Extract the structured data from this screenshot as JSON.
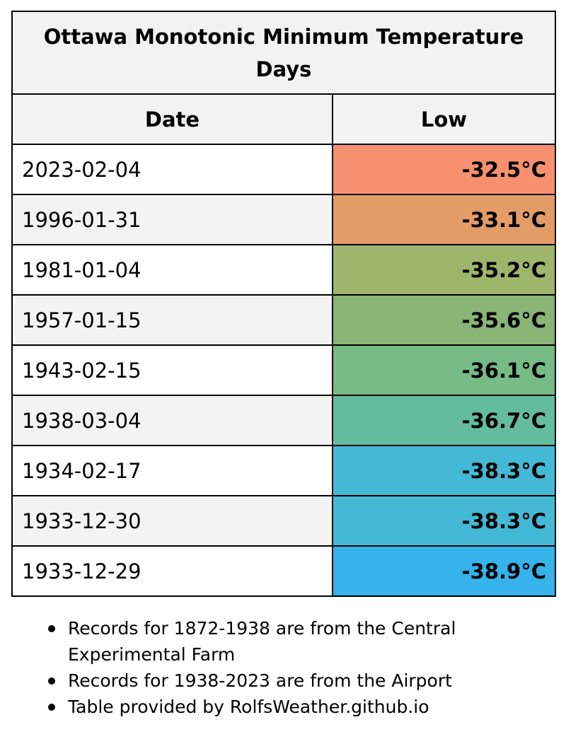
{
  "table": {
    "title": "Ottawa Monotonic Minimum Temperature Days",
    "headers": {
      "date": "Date",
      "low": "Low"
    },
    "rows": [
      {
        "date": "2023-02-04",
        "low": "-32.5°C",
        "color": "#f6906f"
      },
      {
        "date": "1996-01-31",
        "low": "-33.1°C",
        "color": "#e49c67"
      },
      {
        "date": "1981-01-04",
        "low": "-35.2°C",
        "color": "#9eb56c"
      },
      {
        "date": "1957-01-15",
        "low": "-35.6°C",
        "color": "#8ab577"
      },
      {
        "date": "1943-02-15",
        "low": "-36.1°C",
        "color": "#77bb86"
      },
      {
        "date": "1938-03-04",
        "low": "-36.7°C",
        "color": "#64bc9e"
      },
      {
        "date": "1934-02-17",
        "low": "-38.3°C",
        "color": "#44b9d6"
      },
      {
        "date": "1933-12-30",
        "low": "-38.3°C",
        "color": "#44b9d6"
      },
      {
        "date": "1933-12-29",
        "low": "-38.9°C",
        "color": "#35b3ea"
      }
    ]
  },
  "notes": [
    "Records for 1872-1938 are from the Central Experimental Farm",
    "Records for 1938-2023 are from the Airport",
    "Table provided by RolfsWeather.github.io"
  ]
}
